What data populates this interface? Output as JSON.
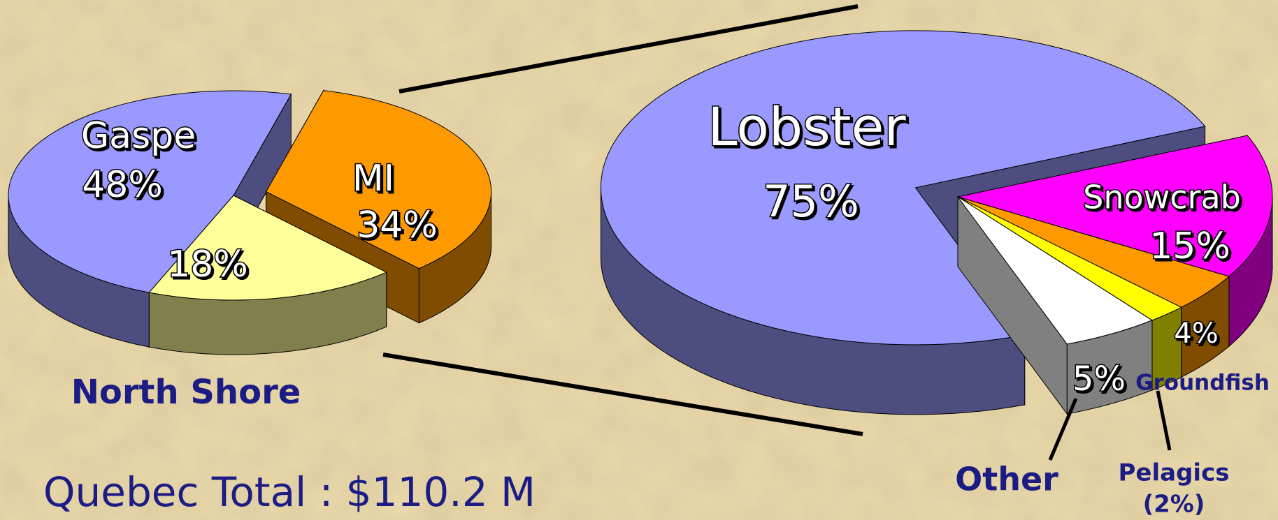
{
  "chart_data": [
    {
      "type": "pie",
      "categories": [
        "Gaspe",
        "MI",
        "North Shore"
      ],
      "values": [
        48,
        34,
        18
      ],
      "value_labels": [
        "48%",
        "34%",
        "18%"
      ],
      "colors": [
        "#9999ff",
        "#ff9900",
        "#ffff99"
      ],
      "annotation": "Quebec Total : $110.2 M"
    },
    {
      "type": "pie",
      "categories": [
        "Snowcrab",
        "Groundfish",
        "Pelagics",
        "Other",
        "Lobster"
      ],
      "values": [
        15,
        4,
        2,
        5,
        75
      ],
      "value_labels": [
        "15%",
        "4%",
        "(2%)",
        "5%",
        "75%"
      ],
      "colors": [
        "#ff00ff",
        "#ff9900",
        "#ffff00",
        "#ffffff",
        "#9999ff"
      ]
    }
  ]
}
